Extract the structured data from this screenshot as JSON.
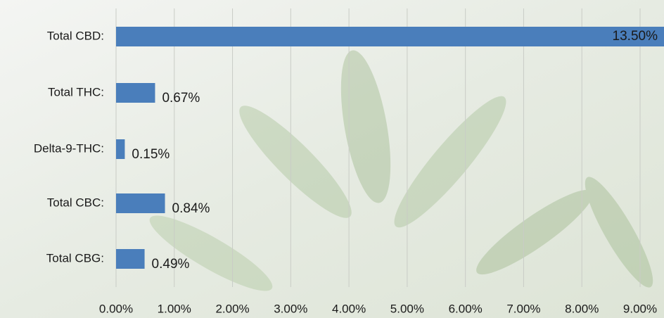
{
  "chart_data": {
    "type": "bar",
    "orientation": "horizontal",
    "categories": [
      "Total CBD:",
      "Total THC:",
      "Delta-9-THC:",
      "Total CBC:",
      "Total CBG:"
    ],
    "values": [
      13.5,
      0.67,
      0.15,
      0.84,
      0.49
    ],
    "value_labels": [
      "13.50%",
      "0.67%",
      "0.15%",
      "0.84%",
      "0.49%"
    ],
    "color": "#4a7ebb",
    "xlim": [
      0,
      9
    ],
    "xticks": [
      {
        "value": 0,
        "label": "0.00%"
      },
      {
        "value": 1,
        "label": "1.00%"
      },
      {
        "value": 2,
        "label": "2.00%"
      },
      {
        "value": 3,
        "label": "3.00%"
      },
      {
        "value": 4,
        "label": "4.00%"
      },
      {
        "value": 5,
        "label": "5.00%"
      },
      {
        "value": 6,
        "label": "6.00%"
      },
      {
        "value": 7,
        "label": "7.00%"
      },
      {
        "value": 8,
        "label": "8.00%"
      },
      {
        "value": 9,
        "label": "9.00%"
      }
    ],
    "grid": true
  }
}
